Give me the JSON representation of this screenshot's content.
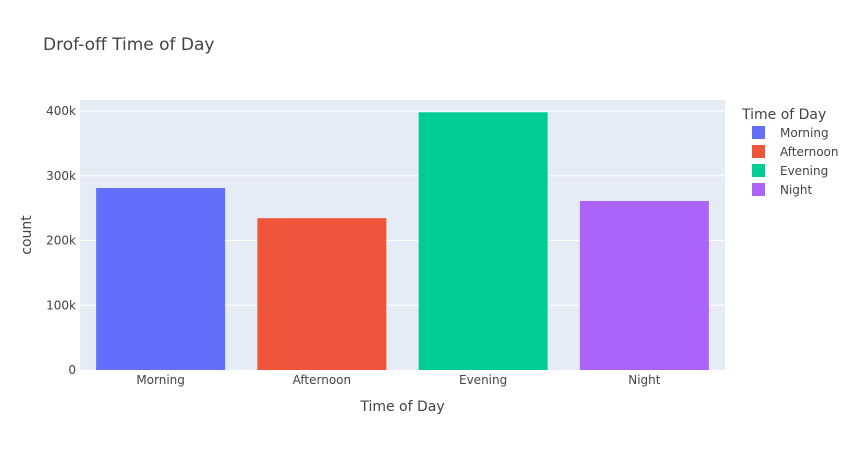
{
  "chart_data": {
    "type": "bar",
    "title": "Drof-off Time of Day",
    "xlabel": "Time of Day",
    "ylabel": "count",
    "categories": [
      "Morning",
      "Afternoon",
      "Evening",
      "Night"
    ],
    "values": [
      281000,
      234500,
      398000,
      261000
    ],
    "colors": [
      "#636efa",
      "#ef553b",
      "#00cc96",
      "#ab63fa"
    ],
    "ylim": [
      0,
      417000
    ],
    "yticks": [
      0,
      100000,
      200000,
      300000,
      400000
    ],
    "ytick_labels": [
      "0",
      "100k",
      "200k",
      "300k",
      "400k"
    ],
    "grid": true,
    "plot_background": "#e5ecf6",
    "legend": {
      "title": "Time of Day",
      "placement": "right",
      "entries": [
        "Morning",
        "Afternoon",
        "Evening",
        "Night"
      ]
    }
  }
}
